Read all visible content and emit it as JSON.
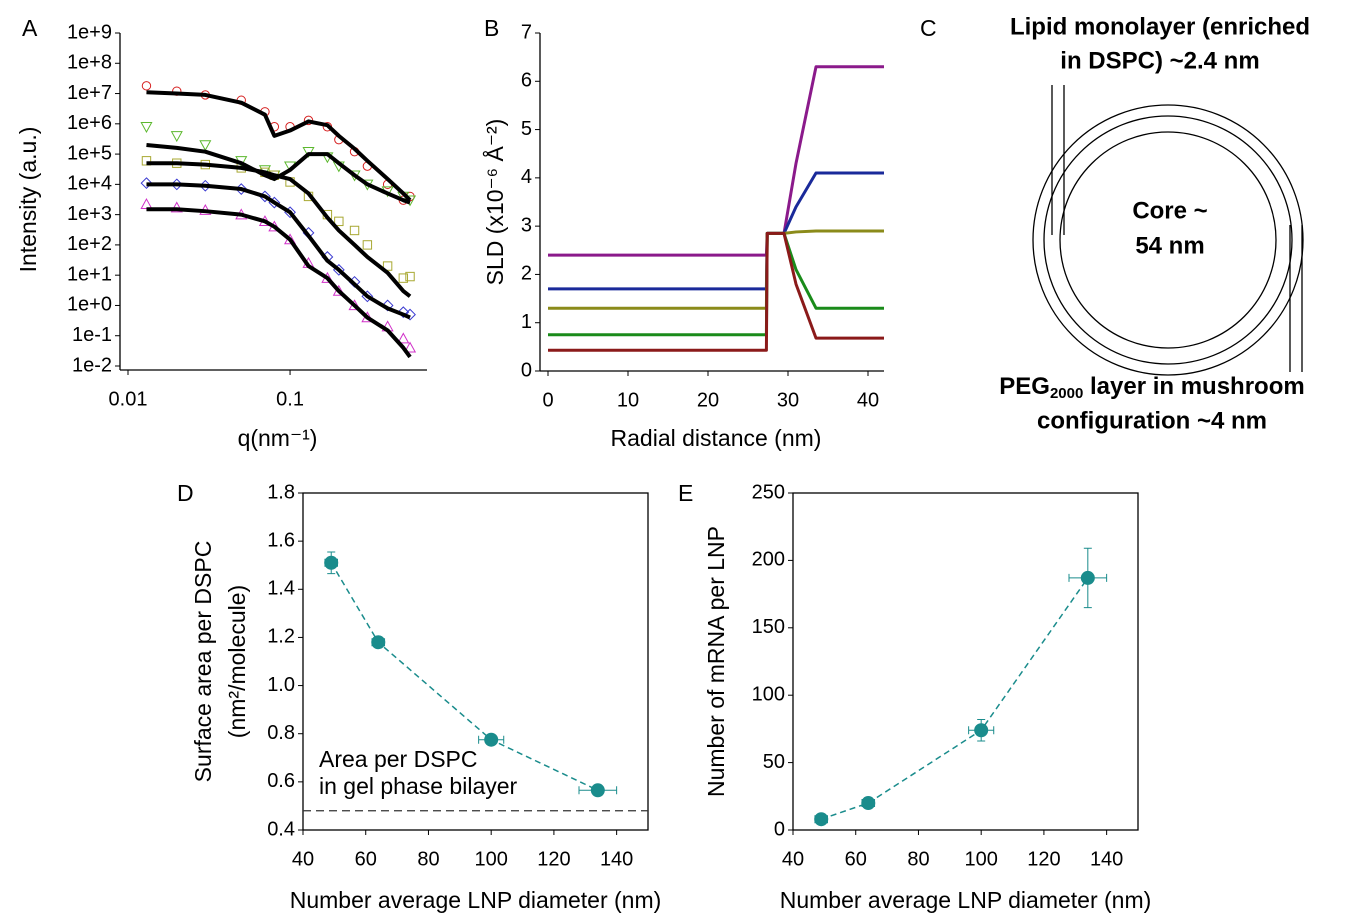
{
  "chart_data": [
    {
      "type": "scatter",
      "panel": "A",
      "xlabel": "q(nm⁻¹)",
      "ylabel": "Intensity (a.u.)",
      "xlog": true,
      "ylog": true,
      "xlim": [
        0.01,
        0.7
      ],
      "ylim": [
        0.01,
        1000000000
      ],
      "xticks": [
        0.01,
        0.1
      ],
      "yticks": [
        {
          "value": 1000000000,
          "label": "1e+9"
        },
        {
          "value": 100000000,
          "label": "1e+8"
        },
        {
          "value": 10000000,
          "label": "1e+7"
        },
        {
          "value": 1000000,
          "label": "1e+6"
        },
        {
          "value": 100000,
          "label": "1e+5"
        },
        {
          "value": 10000,
          "label": "1e+4"
        },
        {
          "value": 1000,
          "label": "1e+3"
        },
        {
          "value": 100,
          "label": "1e+2"
        },
        {
          "value": 10,
          "label": "1e+1"
        },
        {
          "value": 1,
          "label": "1e+0"
        },
        {
          "value": 0.1,
          "label": "1e-1"
        },
        {
          "value": 0.01,
          "label": "1e-2"
        }
      ],
      "x": [
        0.013,
        0.02,
        0.03,
        0.05,
        0.07,
        0.08,
        0.1,
        0.13,
        0.17,
        0.2,
        0.25,
        0.3,
        0.4,
        0.5,
        0.55
      ],
      "series": [
        {
          "color": "#d62020",
          "mode": "markers",
          "marker": "circle",
          "values": [
            18000000,
            12000000,
            9000000,
            6000000,
            2500000,
            800000,
            800000,
            1300000,
            800000,
            300000,
            120000,
            40000,
            10000,
            3000,
            4000
          ]
        },
        {
          "color": "#5cb82e",
          "mode": "markers",
          "marker": "triangle-down",
          "values": [
            800000,
            400000,
            200000,
            60000,
            30000,
            20000,
            40000,
            120000,
            80000,
            40000,
            20000,
            10000,
            6000,
            4000,
            3000
          ]
        },
        {
          "color": "#a8a832",
          "mode": "markers",
          "marker": "square",
          "values": [
            60000,
            50000,
            45000,
            35000,
            25000,
            20000,
            12000,
            4000,
            1000,
            600,
            300,
            100,
            20,
            8,
            9
          ]
        },
        {
          "color": "#3a3ad0",
          "mode": "markers",
          "marker": "diamond",
          "values": [
            11000,
            10000,
            9000,
            7000,
            4000,
            2500,
            1200,
            250,
            40,
            15,
            6,
            2,
            1,
            0.6,
            0.5
          ]
        },
        {
          "color": "#d030c8",
          "mode": "markers",
          "marker": "triangle-up",
          "values": [
            2200,
            1700,
            1400,
            1000,
            600,
            400,
            150,
            25,
            8,
            3,
            1,
            0.4,
            0.2,
            0.08,
            0.04
          ]
        },
        {
          "color": "#000000",
          "mode": "line",
          "values": [
            11000000,
            10000000,
            9000000,
            5000000,
            2000000,
            400000,
            600000,
            1200000,
            900000,
            400000,
            150000,
            60000,
            15000,
            5000,
            3000
          ]
        },
        {
          "color": "#000000",
          "mode": "line",
          "values": [
            200000,
            160000,
            120000,
            50000,
            20000,
            15000,
            30000,
            100000,
            100000,
            50000,
            20000,
            10000,
            5000,
            3000,
            2500
          ]
        },
        {
          "color": "#000000",
          "mode": "line",
          "values": [
            50000,
            50000,
            45000,
            35000,
            25000,
            20000,
            15000,
            5000,
            800,
            300,
            100,
            40,
            12,
            3,
            2
          ]
        },
        {
          "color": "#000000",
          "mode": "line",
          "values": [
            10000,
            10000,
            9000,
            7000,
            4000,
            2500,
            1200,
            200,
            30,
            15,
            5,
            2,
            0.8,
            0.5,
            0.4
          ]
        },
        {
          "color": "#000000",
          "mode": "line",
          "values": [
            1500,
            1500,
            1300,
            1000,
            600,
            400,
            150,
            20,
            8,
            3,
            1,
            0.4,
            0.15,
            0.04,
            0.02
          ]
        }
      ]
    },
    {
      "type": "line",
      "panel": "B",
      "xlabel": "Radial distance (nm)",
      "ylabel": "SLD (x10⁻⁶ Å⁻²)",
      "xlim": [
        0,
        42
      ],
      "ylim": [
        0,
        7
      ],
      "xticks": [
        0,
        10,
        20,
        30,
        40
      ],
      "yticks": [
        0,
        1,
        2,
        3,
        4,
        5,
        6,
        7
      ],
      "x": [
        0,
        27.3,
        27.4,
        29.5,
        31,
        33.5,
        42
      ],
      "series": [
        {
          "color": "#8b1a8b",
          "mode": "line",
          "values": [
            2.4,
            2.4,
            2.85,
            2.85,
            4.3,
            6.3,
            6.3
          ]
        },
        {
          "color": "#1a2a9a",
          "mode": "line",
          "values": [
            1.7,
            1.7,
            2.85,
            2.85,
            3.4,
            4.1,
            4.1
          ]
        },
        {
          "color": "#8b8b1a",
          "mode": "line",
          "values": [
            1.3,
            1.3,
            2.85,
            2.85,
            2.88,
            2.9,
            2.9
          ]
        },
        {
          "color": "#1a8b1a",
          "mode": "line",
          "values": [
            0.75,
            0.75,
            2.85,
            2.85,
            2.1,
            1.3,
            1.3
          ]
        },
        {
          "color": "#8b1a1a",
          "mode": "line",
          "values": [
            0.43,
            0.43,
            2.85,
            2.85,
            1.8,
            0.68,
            0.68
          ]
        }
      ]
    },
    {
      "type": "scatter",
      "panel": "D",
      "xlabel": "Number average LNP diameter (nm)",
      "ylabel": [
        "Surface area per DSPC",
        "(nm²/molecule)"
      ],
      "xlim": [
        40,
        150
      ],
      "ylim": [
        0.4,
        1.8
      ],
      "xticks": [
        40,
        60,
        80,
        100,
        120,
        140
      ],
      "yticks": [
        0.4,
        0.6,
        0.8,
        {
          "value": 1,
          "label": "1.0"
        },
        1.2,
        1.4,
        1.6,
        1.8
      ],
      "hline": 0.48,
      "annotation": [
        "Area per DSPC",
        "in gel phase bilayer"
      ],
      "frame": true,
      "x": [
        49,
        64,
        100,
        134
      ],
      "series": [
        {
          "color": "#1a8c8c",
          "mode": "lines+markers",
          "dash": true,
          "values": [
            1.51,
            1.18,
            0.775,
            0.565
          ],
          "yerr": [
            0.045,
            0.015,
            0.02,
            0.015
          ],
          "xerr": [
            2,
            2,
            4,
            6
          ]
        }
      ]
    },
    {
      "type": "scatter",
      "panel": "E",
      "xlabel": "Number average LNP diameter (nm)",
      "ylabel": "Number of mRNA per LNP",
      "xlim": [
        40,
        150
      ],
      "ylim": [
        0,
        250
      ],
      "xticks": [
        40,
        60,
        80,
        100,
        120,
        140
      ],
      "yticks": [
        0,
        50,
        100,
        150,
        200,
        250
      ],
      "frame": true,
      "x": [
        49,
        64,
        100,
        134
      ],
      "series": [
        {
          "color": "#1a8c8c",
          "mode": "lines+markers",
          "dash": true,
          "values": [
            8,
            20,
            74,
            187
          ],
          "yerr": [
            2,
            3,
            8,
            22
          ],
          "xerr": [
            2,
            2,
            4,
            6
          ]
        }
      ]
    }
  ],
  "diagram": {
    "panel": "C",
    "top_label": [
      "Lipid monolayer (enriched",
      "in DSPC) ~2.4 nm"
    ],
    "core_label": [
      "Core ~",
      "54 nm"
    ],
    "bottom_label": [
      [
        "PEG",
        "2000",
        " layer in mushroom"
      ],
      "configuration ~4 nm"
    ]
  }
}
